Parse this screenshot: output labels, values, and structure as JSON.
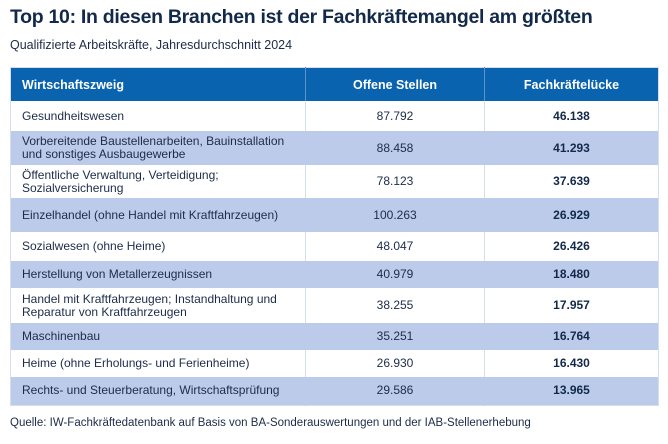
{
  "title": "Top 10: In diesen Branchen ist der Fachkräftemangel am größten",
  "subtitle": "Qualifizierte Arbeitskräfte, Jahresdurchschnitt 2024",
  "source": "Quelle: IW-Fachkräftedatenbank auf Basis von BA-Sonderauswertungen und der IAB-Stellenerhebung",
  "colors": {
    "header_bg": "#0a63ae",
    "alt_row_bg": "#bccbea",
    "title": "#13294a"
  },
  "chart_data": {
    "type": "table",
    "columns": [
      "Wirtschaftszweig",
      "Offene Stellen",
      "Fachkräftelücke"
    ],
    "rows": [
      [
        "Gesundheitswesen",
        "87.792",
        "46.138"
      ],
      [
        "Vorbereitende Baustellenarbeiten, Bauinstallation und sonstiges Ausbaugewerbe",
        "88.458",
        "41.293"
      ],
      [
        "Öffentliche Verwaltung, Verteidigung; Sozialversicherung",
        "78.123",
        "37.639"
      ],
      [
        "Einzelhandel (ohne Handel mit Kraftfahrzeugen)",
        "100.263",
        "26.929"
      ],
      [
        "Sozialwesen (ohne Heime)",
        "48.047",
        "26.426"
      ],
      [
        "Herstellung von Metallerzeugnissen",
        "40.979",
        "18.480"
      ],
      [
        "Handel mit Kraftfahrzeugen; Instandhaltung und Reparatur von Kraftfahrzeugen",
        "38.255",
        "17.957"
      ],
      [
        "Maschinenbau",
        "35.251",
        "16.764"
      ],
      [
        "Heime (ohne Erholungs- und Ferienheime)",
        "26.930",
        "16.430"
      ],
      [
        "Rechts- und Steuerberatung, Wirtschaftsprüfung",
        "29.586",
        "13.965"
      ]
    ]
  }
}
